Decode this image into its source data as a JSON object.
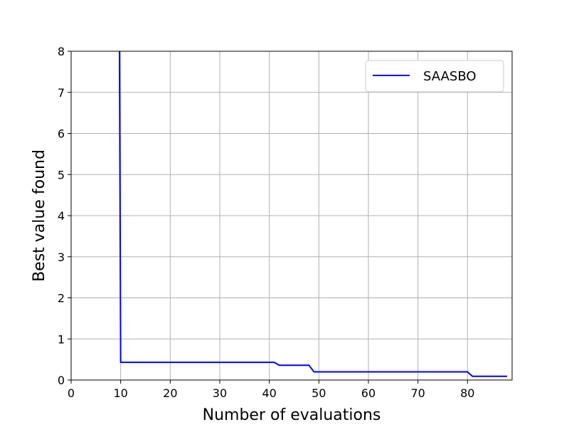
{
  "chart_data": {
    "type": "line",
    "title": "",
    "xlabel": "Number of evaluations",
    "ylabel": "Best value found",
    "xlim": [
      0,
      89
    ],
    "ylim": [
      0,
      8
    ],
    "xticks": [
      0,
      10,
      20,
      30,
      40,
      50,
      60,
      70,
      80
    ],
    "yticks": [
      0,
      1,
      2,
      3,
      4,
      5,
      6,
      7,
      8
    ],
    "grid": true,
    "legend_position": "top-right",
    "series": [
      {
        "name": "SAASBO",
        "color": "#0000ff",
        "x": [
          9.75,
          10,
          41,
          42,
          48,
          49,
          80,
          81,
          88
        ],
        "y": [
          8.2,
          0.43,
          0.43,
          0.36,
          0.36,
          0.2,
          0.2,
          0.09,
          0.09
        ]
      }
    ]
  }
}
